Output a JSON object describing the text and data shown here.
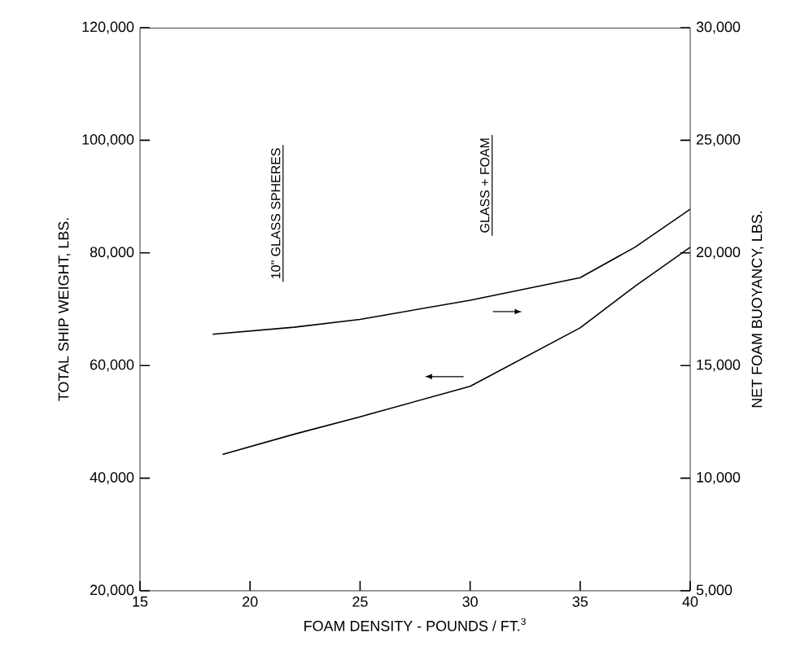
{
  "chart_data": {
    "type": "line",
    "xlabel": "FOAM DENSITY - POUNDS / FT.$^{3}$",
    "ylabel": "TOTAL SHIP WEIGHT, LBS.",
    "y2label": "NET FOAM BUOYANCY, LBS.",
    "xlim": [
      15,
      40
    ],
    "xticks": [
      15,
      20,
      25,
      30,
      35,
      40
    ],
    "ylim": [
      20000,
      120000
    ],
    "yticks": [
      {
        "value": 20000,
        "label": "20,000"
      },
      {
        "value": 40000,
        "label": "40,000"
      },
      {
        "value": 60000,
        "label": "60,000"
      },
      {
        "value": 80000,
        "label": "80,000"
      },
      {
        "value": 100000,
        "label": "100,000"
      },
      {
        "value": 120000,
        "label": "120,000"
      }
    ],
    "y2lim": [
      5000,
      30000
    ],
    "y2ticks": [
      {
        "value": 5000,
        "label": "5,000"
      },
      {
        "value": 10000,
        "label": "10,000"
      },
      {
        "value": 15000,
        "label": "15,000"
      },
      {
        "value": 20000,
        "label": "20,000"
      },
      {
        "value": 25000,
        "label": "25,000"
      },
      {
        "value": 30000,
        "label": "30,000"
      }
    ],
    "annotations": [
      "10\" GLASS SPHERES",
      "GLASS + FOAM"
    ],
    "series": [
      {
        "color": "#000000",
        "x": [
          18.75,
          22,
          25,
          30,
          35,
          37.5,
          40
        ],
        "values": [
          44200,
          47800,
          50900,
          56300,
          66700,
          74100,
          81000
        ]
      },
      {
        "color": "#000000",
        "axis": "y2",
        "x": [
          18.3,
          22,
          25,
          30,
          35,
          37.5,
          40
        ],
        "values": [
          16390,
          16700,
          17050,
          17900,
          18900,
          20260,
          21940
        ]
      }
    ]
  }
}
